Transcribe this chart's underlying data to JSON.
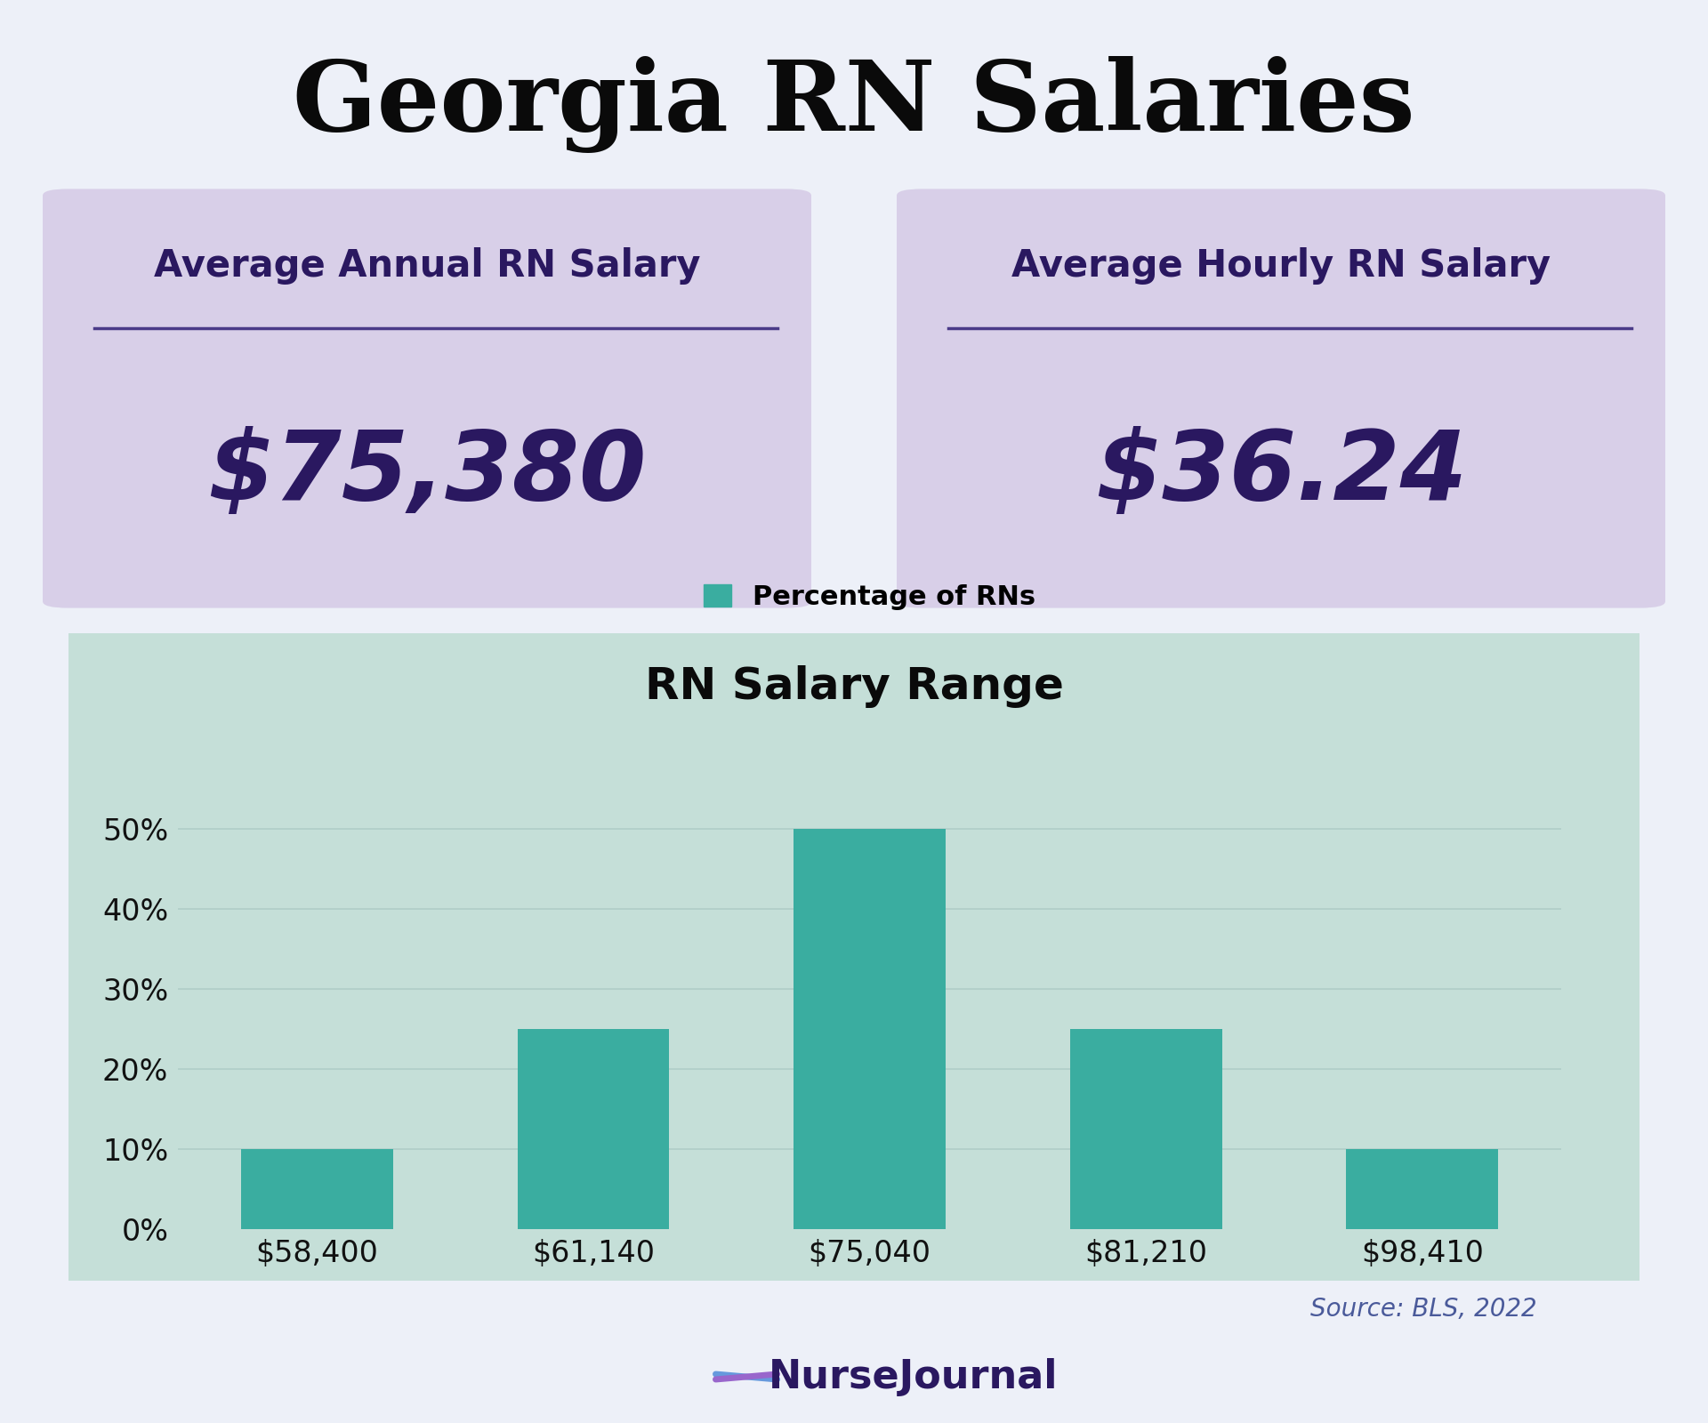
{
  "title": "Georgia RN Salaries",
  "title_fontsize": 80,
  "title_color": "#0a0a0a",
  "bg_color": "#edf0f8",
  "card_color": "#d8cfe8",
  "chart_bg_color": "#c5dfd8",
  "annual_label": "Average Annual RN Salary",
  "annual_value": "$75,380",
  "hourly_label": "Average Hourly RN Salary",
  "hourly_value": "$36.24",
  "card_label_color": "#2a1860",
  "card_value_color": "#2a1860",
  "card_label_fontsize": 30,
  "card_value_fontsize": 78,
  "chart_title": "RN Salary Range",
  "chart_title_fontsize": 36,
  "legend_label": "Percentage of RNs",
  "legend_fontsize": 22,
  "bar_color": "#3aada0",
  "categories": [
    "$58,400",
    "$61,140",
    "$75,040",
    "$81,210",
    "$98,410"
  ],
  "values": [
    10,
    25,
    50,
    25,
    10
  ],
  "ytick_labels": [
    "0%",
    "10%",
    "20%",
    "30%",
    "40%",
    "50%"
  ],
  "ytick_values": [
    0,
    10,
    20,
    30,
    40,
    50
  ],
  "ylim": [
    0,
    55
  ],
  "source_text": "Source: BLS, 2022",
  "source_color": "#4a5a9a",
  "source_fontsize": 20,
  "axis_label_color": "#111111",
  "axis_tick_fontsize": 24,
  "grid_color": "#b0cec8",
  "divider_color": "#4a3a88"
}
